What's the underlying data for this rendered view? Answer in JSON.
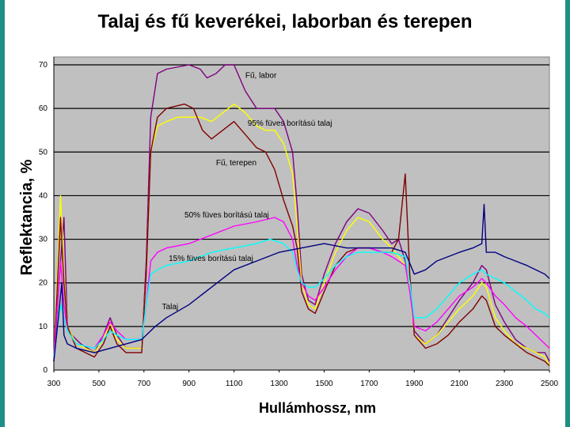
{
  "chart_data": {
    "type": "line",
    "title": "Talaj és fű keverékei, laborban és terepen",
    "xlabel": "Hullámhossz, nm",
    "ylabel": "Reflektancia, %",
    "xlim": [
      300,
      2500
    ],
    "ylim": [
      0,
      70
    ],
    "x_ticks": [
      "300",
      "500",
      "700",
      "900",
      "1100",
      "1300",
      "1500",
      "1700",
      "1900",
      "2100",
      "2300",
      "2500"
    ],
    "y_ticks": [
      "0",
      "10",
      "20",
      "30",
      "40",
      "50",
      "60",
      "70"
    ],
    "grid": "horizontal",
    "background": "#c0c0c0",
    "series": [
      {
        "name": "Fű, labor",
        "color": "#800080",
        "points": [
          [
            300,
            2
          ],
          [
            330,
            25
          ],
          [
            345,
            35
          ],
          [
            360,
            10
          ],
          [
            380,
            8
          ],
          [
            420,
            6
          ],
          [
            480,
            4
          ],
          [
            520,
            8
          ],
          [
            550,
            12
          ],
          [
            580,
            8
          ],
          [
            620,
            5
          ],
          [
            690,
            5
          ],
          [
            710,
            25
          ],
          [
            730,
            58
          ],
          [
            760,
            68
          ],
          [
            800,
            69
          ],
          [
            900,
            70
          ],
          [
            950,
            69
          ],
          [
            980,
            67
          ],
          [
            1020,
            68
          ],
          [
            1060,
            70
          ],
          [
            1100,
            70
          ],
          [
            1150,
            64
          ],
          [
            1200,
            60
          ],
          [
            1280,
            60
          ],
          [
            1320,
            57
          ],
          [
            1360,
            50
          ],
          [
            1380,
            38
          ],
          [
            1400,
            22
          ],
          [
            1430,
            16
          ],
          [
            1460,
            15
          ],
          [
            1500,
            22
          ],
          [
            1550,
            29
          ],
          [
            1600,
            34
          ],
          [
            1650,
            37
          ],
          [
            1700,
            36
          ],
          [
            1760,
            32
          ],
          [
            1800,
            29
          ],
          [
            1830,
            30
          ],
          [
            1860,
            25
          ],
          [
            1880,
            20
          ],
          [
            1900,
            9
          ],
          [
            1950,
            6
          ],
          [
            2000,
            8
          ],
          [
            2050,
            12
          ],
          [
            2100,
            16
          ],
          [
            2160,
            20
          ],
          [
            2200,
            24
          ],
          [
            2220,
            23
          ],
          [
            2260,
            15
          ],
          [
            2300,
            11
          ],
          [
            2350,
            7
          ],
          [
            2400,
            5
          ],
          [
            2440,
            4
          ],
          [
            2480,
            4
          ],
          [
            2500,
            2
          ]
        ]
      },
      {
        "name": "95% füves borítású talaj",
        "color": "#ffff00",
        "points": [
          [
            300,
            2
          ],
          [
            330,
            40
          ],
          [
            345,
            22
          ],
          [
            360,
            10
          ],
          [
            400,
            6
          ],
          [
            480,
            4
          ],
          [
            520,
            7
          ],
          [
            550,
            11
          ],
          [
            580,
            7
          ],
          [
            620,
            5
          ],
          [
            690,
            5
          ],
          [
            710,
            22
          ],
          [
            730,
            50
          ],
          [
            760,
            56
          ],
          [
            800,
            57
          ],
          [
            850,
            58
          ],
          [
            900,
            58
          ],
          [
            950,
            58
          ],
          [
            1000,
            57
          ],
          [
            1050,
            59
          ],
          [
            1100,
            61
          ],
          [
            1150,
            59
          ],
          [
            1200,
            56
          ],
          [
            1240,
            55
          ],
          [
            1280,
            55
          ],
          [
            1320,
            52
          ],
          [
            1360,
            45
          ],
          [
            1380,
            33
          ],
          [
            1400,
            20
          ],
          [
            1430,
            15
          ],
          [
            1460,
            14
          ],
          [
            1500,
            20
          ],
          [
            1550,
            27
          ],
          [
            1600,
            32
          ],
          [
            1650,
            35
          ],
          [
            1700,
            34
          ],
          [
            1760,
            30
          ],
          [
            1800,
            28
          ],
          [
            1860,
            24
          ],
          [
            1880,
            19
          ],
          [
            1900,
            8
          ],
          [
            1950,
            6
          ],
          [
            2000,
            8
          ],
          [
            2050,
            11
          ],
          [
            2100,
            14
          ],
          [
            2160,
            17
          ],
          [
            2200,
            20
          ],
          [
            2220,
            19
          ],
          [
            2260,
            12
          ],
          [
            2300,
            9
          ],
          [
            2350,
            6
          ],
          [
            2400,
            5
          ],
          [
            2440,
            4
          ],
          [
            2480,
            3
          ],
          [
            2500,
            1
          ]
        ]
      },
      {
        "name": "Fű, terepen",
        "color": "#800000",
        "points": [
          [
            300,
            2
          ],
          [
            330,
            35
          ],
          [
            345,
            20
          ],
          [
            360,
            10
          ],
          [
            400,
            5
          ],
          [
            480,
            3
          ],
          [
            520,
            6
          ],
          [
            550,
            10
          ],
          [
            580,
            6
          ],
          [
            620,
            4
          ],
          [
            690,
            4
          ],
          [
            710,
            22
          ],
          [
            730,
            50
          ],
          [
            760,
            58
          ],
          [
            800,
            60
          ],
          [
            880,
            61
          ],
          [
            920,
            60
          ],
          [
            960,
            55
          ],
          [
            1000,
            53
          ],
          [
            1050,
            55
          ],
          [
            1100,
            57
          ],
          [
            1150,
            54
          ],
          [
            1200,
            51
          ],
          [
            1240,
            50
          ],
          [
            1280,
            46
          ],
          [
            1320,
            39
          ],
          [
            1360,
            33
          ],
          [
            1380,
            28
          ],
          [
            1400,
            18
          ],
          [
            1430,
            14
          ],
          [
            1460,
            13
          ],
          [
            1500,
            18
          ],
          [
            1550,
            24
          ],
          [
            1600,
            27
          ],
          [
            1650,
            28
          ],
          [
            1700,
            28
          ],
          [
            1760,
            27
          ],
          [
            1800,
            27
          ],
          [
            1830,
            30
          ],
          [
            1860,
            45
          ],
          [
            1880,
            22
          ],
          [
            1900,
            8
          ],
          [
            1950,
            5
          ],
          [
            2000,
            6
          ],
          [
            2050,
            8
          ],
          [
            2100,
            11
          ],
          [
            2160,
            14
          ],
          [
            2200,
            17
          ],
          [
            2220,
            16
          ],
          [
            2260,
            10
          ],
          [
            2300,
            8
          ],
          [
            2350,
            6
          ],
          [
            2400,
            4
          ],
          [
            2440,
            3
          ],
          [
            2480,
            2
          ],
          [
            2500,
            1
          ]
        ]
      },
      {
        "name": "50% füves borítású talaj",
        "color": "#ff00ff",
        "points": [
          [
            300,
            3
          ],
          [
            330,
            25
          ],
          [
            345,
            15
          ],
          [
            360,
            9
          ],
          [
            400,
            6
          ],
          [
            480,
            5
          ],
          [
            520,
            8
          ],
          [
            550,
            11
          ],
          [
            580,
            9
          ],
          [
            620,
            7
          ],
          [
            690,
            7
          ],
          [
            710,
            15
          ],
          [
            730,
            25
          ],
          [
            760,
            27
          ],
          [
            800,
            28
          ],
          [
            900,
            29
          ],
          [
            1000,
            31
          ],
          [
            1100,
            33
          ],
          [
            1200,
            34
          ],
          [
            1280,
            35
          ],
          [
            1320,
            34
          ],
          [
            1360,
            30
          ],
          [
            1380,
            24
          ],
          [
            1400,
            20
          ],
          [
            1430,
            17
          ],
          [
            1460,
            16
          ],
          [
            1500,
            19
          ],
          [
            1550,
            23
          ],
          [
            1600,
            26
          ],
          [
            1650,
            28
          ],
          [
            1700,
            28
          ],
          [
            1760,
            27
          ],
          [
            1800,
            26
          ],
          [
            1860,
            24
          ],
          [
            1880,
            18
          ],
          [
            1900,
            10
          ],
          [
            1950,
            9
          ],
          [
            2000,
            11
          ],
          [
            2050,
            14
          ],
          [
            2100,
            17
          ],
          [
            2160,
            19
          ],
          [
            2200,
            21
          ],
          [
            2220,
            20
          ],
          [
            2260,
            17
          ],
          [
            2300,
            15
          ],
          [
            2350,
            12
          ],
          [
            2400,
            10
          ],
          [
            2440,
            8
          ],
          [
            2480,
            6
          ],
          [
            2500,
            5
          ]
        ]
      },
      {
        "name": "15% füves borítású talaj",
        "color": "#00ffff",
        "points": [
          [
            300,
            3
          ],
          [
            330,
            15
          ],
          [
            345,
            12
          ],
          [
            360,
            9
          ],
          [
            400,
            6
          ],
          [
            480,
            5
          ],
          [
            520,
            7
          ],
          [
            550,
            9
          ],
          [
            580,
            8
          ],
          [
            620,
            7
          ],
          [
            690,
            7
          ],
          [
            710,
            15
          ],
          [
            730,
            22
          ],
          [
            760,
            23
          ],
          [
            800,
            24
          ],
          [
            900,
            25
          ],
          [
            1000,
            27
          ],
          [
            1100,
            28
          ],
          [
            1200,
            29
          ],
          [
            1260,
            30
          ],
          [
            1320,
            29
          ],
          [
            1360,
            27
          ],
          [
            1380,
            23
          ],
          [
            1400,
            20
          ],
          [
            1430,
            19
          ],
          [
            1460,
            19
          ],
          [
            1500,
            21
          ],
          [
            1550,
            24
          ],
          [
            1600,
            26
          ],
          [
            1650,
            27
          ],
          [
            1700,
            27
          ],
          [
            1760,
            27
          ],
          [
            1800,
            27
          ],
          [
            1860,
            26
          ],
          [
            1880,
            20
          ],
          [
            1900,
            12
          ],
          [
            1950,
            12
          ],
          [
            2000,
            14
          ],
          [
            2050,
            17
          ],
          [
            2100,
            20
          ],
          [
            2160,
            22
          ],
          [
            2200,
            23
          ],
          [
            2220,
            22
          ],
          [
            2260,
            21
          ],
          [
            2300,
            20
          ],
          [
            2350,
            18
          ],
          [
            2400,
            16
          ],
          [
            2440,
            14
          ],
          [
            2480,
            13
          ],
          [
            2500,
            12
          ]
        ]
      },
      {
        "name": "Talaj",
        "color": "#000080",
        "points": [
          [
            300,
            2
          ],
          [
            320,
            12
          ],
          [
            335,
            20
          ],
          [
            345,
            8
          ],
          [
            360,
            6
          ],
          [
            400,
            5
          ],
          [
            480,
            4
          ],
          [
            550,
            5
          ],
          [
            620,
            6
          ],
          [
            690,
            7
          ],
          [
            750,
            10
          ],
          [
            800,
            12
          ],
          [
            900,
            15
          ],
          [
            1000,
            19
          ],
          [
            1100,
            23
          ],
          [
            1200,
            25
          ],
          [
            1300,
            27
          ],
          [
            1400,
            28
          ],
          [
            1500,
            29
          ],
          [
            1600,
            28
          ],
          [
            1700,
            28
          ],
          [
            1800,
            28
          ],
          [
            1860,
            27
          ],
          [
            1900,
            22
          ],
          [
            1950,
            23
          ],
          [
            2000,
            25
          ],
          [
            2050,
            26
          ],
          [
            2100,
            27
          ],
          [
            2160,
            28
          ],
          [
            2200,
            29
          ],
          [
            2210,
            38
          ],
          [
            2220,
            27
          ],
          [
            2260,
            27
          ],
          [
            2300,
            26
          ],
          [
            2350,
            25
          ],
          [
            2400,
            24
          ],
          [
            2440,
            23
          ],
          [
            2480,
            22
          ],
          [
            2500,
            21
          ]
        ]
      }
    ],
    "annotations": [
      {
        "text": "Fű, labor",
        "x": 1150,
        "y": 67
      },
      {
        "text": "95% füves borítású talaj",
        "x": 1160,
        "y": 56
      },
      {
        "text": "Fű, terepen",
        "x": 1020,
        "y": 47
      },
      {
        "text": "50% füves borítású talaj",
        "x": 880,
        "y": 35
      },
      {
        "text": "15% füves borítású talaj",
        "x": 810,
        "y": 25
      },
      {
        "text": "Talaj",
        "x": 780,
        "y": 14
      }
    ]
  }
}
